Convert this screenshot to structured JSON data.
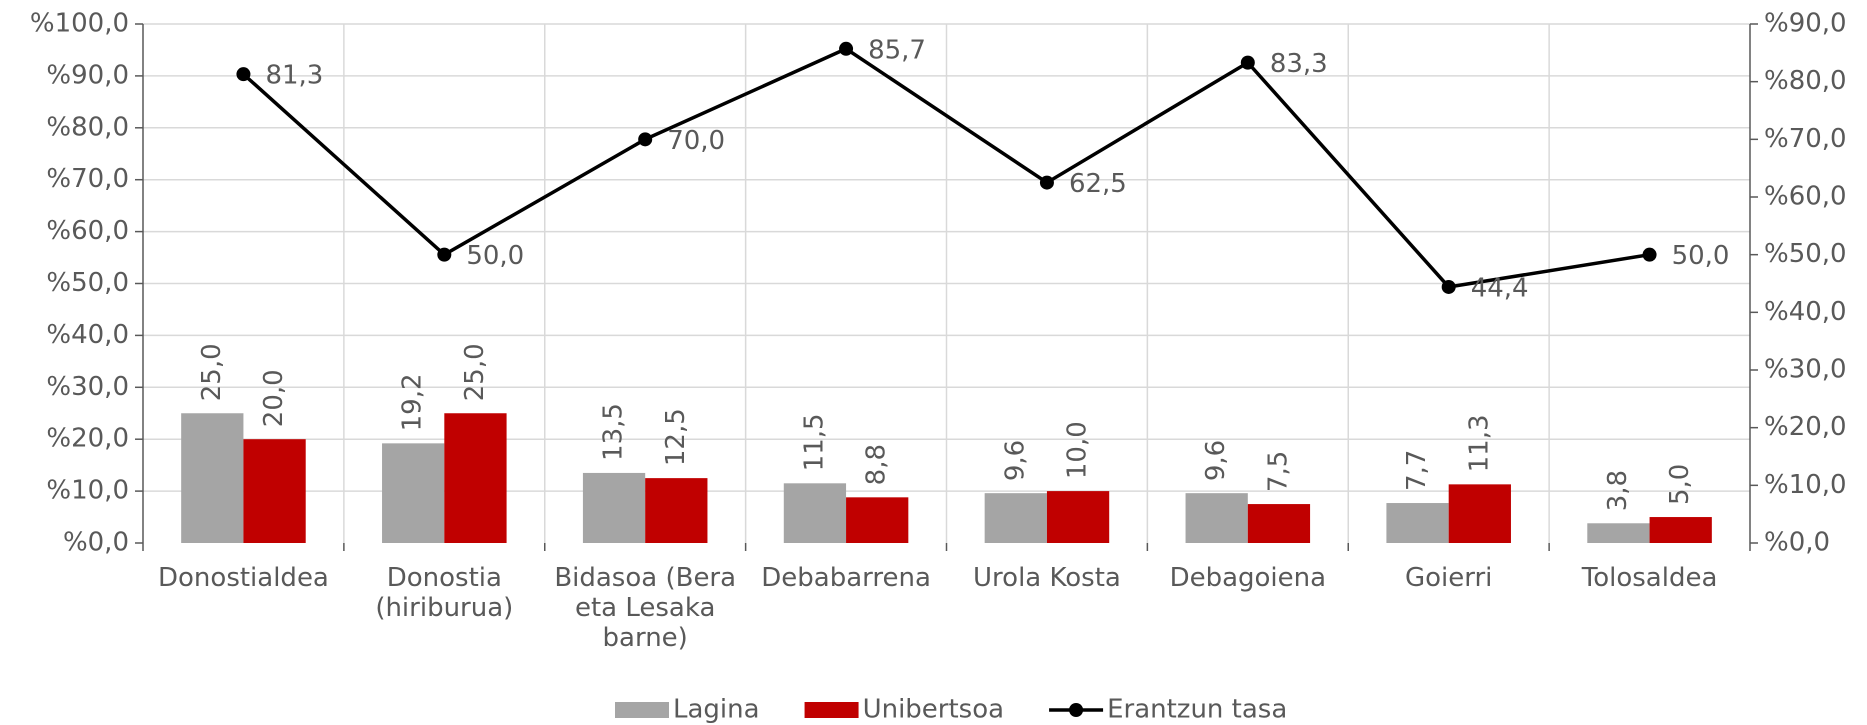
{
  "chart_data": {
    "type": "bar-line",
    "categories": [
      "Donostialdea",
      "Donostia (hiriburua)",
      "Bidasoa (Bera eta Lesaka barne)",
      "Debabarrena",
      "Urola Kosta",
      "Debagoiena",
      "Goierri",
      "Tolosaldea"
    ],
    "series": [
      {
        "name": "Lagina",
        "color": "#a5a5a5",
        "type": "bar",
        "values": [
          25.0,
          19.2,
          13.5,
          11.5,
          9.6,
          9.6,
          7.7,
          3.8
        ],
        "value_labels": [
          "25,0",
          "19,2",
          "13,5",
          "11,5",
          "9,6",
          "9,6",
          "7,7",
          "3,8"
        ]
      },
      {
        "name": "Unibertsoa",
        "color": "#c00000",
        "type": "bar",
        "values": [
          20.0,
          25.0,
          12.5,
          8.8,
          10.0,
          7.5,
          11.3,
          5.0
        ],
        "value_labels": [
          "20,0",
          "25,0",
          "12,5",
          "8,8",
          "10,0",
          "7,5",
          "11,3",
          "5,0"
        ]
      },
      {
        "name": "Erantzun tasa",
        "color": "#000000",
        "type": "line",
        "axis": "y2",
        "values": [
          81.3,
          50.0,
          70.0,
          85.7,
          62.5,
          83.3,
          44.4,
          50.0
        ],
        "value_labels": [
          "81,3",
          "50,0",
          "70,0",
          "85,7",
          "62,5",
          "83,3",
          "44,4",
          "50,0"
        ]
      }
    ],
    "ylim": [
      0,
      100
    ],
    "yticks": [
      {
        "value": 0,
        "label": "%0,0"
      },
      {
        "value": 10,
        "label": "%10,0"
      },
      {
        "value": 20,
        "label": "%20,0"
      },
      {
        "value": 30,
        "label": "%30,0"
      },
      {
        "value": 40,
        "label": "%40,0"
      },
      {
        "value": 50,
        "label": "%50,0"
      },
      {
        "value": 60,
        "label": "%60,0"
      },
      {
        "value": 70,
        "label": "%70,0"
      },
      {
        "value": 80,
        "label": "%80,0"
      },
      {
        "value": 90,
        "label": "%90,0"
      },
      {
        "value": 100,
        "label": "%100,0"
      }
    ],
    "y2lim": [
      0,
      90
    ],
    "y2ticks": [
      {
        "value": 0,
        "label": "%0,0"
      },
      {
        "value": 10,
        "label": "%10,0"
      },
      {
        "value": 20,
        "label": "%20,0"
      },
      {
        "value": 30,
        "label": "%30,0"
      },
      {
        "value": 40,
        "label": "%40,0"
      },
      {
        "value": 50,
        "label": "%50,0"
      },
      {
        "value": 60,
        "label": "%60,0"
      },
      {
        "value": 70,
        "label": "%70,0"
      },
      {
        "value": 80,
        "label": "%80,0"
      },
      {
        "value": 90,
        "label": "%90,0"
      }
    ],
    "grid": true,
    "legend": "bottom"
  }
}
